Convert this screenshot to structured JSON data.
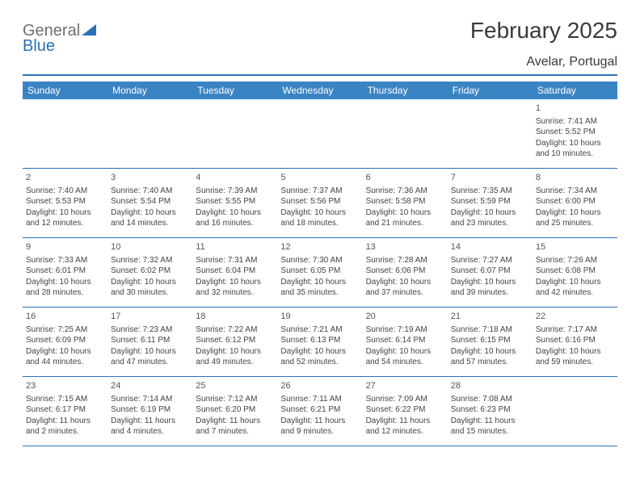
{
  "logo": {
    "textGray": "General",
    "textBlue": "Blue"
  },
  "title": "February 2025",
  "location": "Avelar, Portugal",
  "colors": {
    "headerBar": "#3b84c4",
    "rule": "#2a71b8",
    "logoGray": "#6f6f6f",
    "logoBlue": "#2a71b8",
    "text": "#333333",
    "background": "#ffffff"
  },
  "weekdays": [
    "Sunday",
    "Monday",
    "Tuesday",
    "Wednesday",
    "Thursday",
    "Friday",
    "Saturday"
  ],
  "startOffset": 6,
  "days": [
    {
      "n": 1,
      "sunrise": "7:41 AM",
      "sunset": "5:52 PM",
      "daylight": "10 hours and 10 minutes."
    },
    {
      "n": 2,
      "sunrise": "7:40 AM",
      "sunset": "5:53 PM",
      "daylight": "10 hours and 12 minutes."
    },
    {
      "n": 3,
      "sunrise": "7:40 AM",
      "sunset": "5:54 PM",
      "daylight": "10 hours and 14 minutes."
    },
    {
      "n": 4,
      "sunrise": "7:39 AM",
      "sunset": "5:55 PM",
      "daylight": "10 hours and 16 minutes."
    },
    {
      "n": 5,
      "sunrise": "7:37 AM",
      "sunset": "5:56 PM",
      "daylight": "10 hours and 18 minutes."
    },
    {
      "n": 6,
      "sunrise": "7:36 AM",
      "sunset": "5:58 PM",
      "daylight": "10 hours and 21 minutes."
    },
    {
      "n": 7,
      "sunrise": "7:35 AM",
      "sunset": "5:59 PM",
      "daylight": "10 hours and 23 minutes."
    },
    {
      "n": 8,
      "sunrise": "7:34 AM",
      "sunset": "6:00 PM",
      "daylight": "10 hours and 25 minutes."
    },
    {
      "n": 9,
      "sunrise": "7:33 AM",
      "sunset": "6:01 PM",
      "daylight": "10 hours and 28 minutes."
    },
    {
      "n": 10,
      "sunrise": "7:32 AM",
      "sunset": "6:02 PM",
      "daylight": "10 hours and 30 minutes."
    },
    {
      "n": 11,
      "sunrise": "7:31 AM",
      "sunset": "6:04 PM",
      "daylight": "10 hours and 32 minutes."
    },
    {
      "n": 12,
      "sunrise": "7:30 AM",
      "sunset": "6:05 PM",
      "daylight": "10 hours and 35 minutes."
    },
    {
      "n": 13,
      "sunrise": "7:28 AM",
      "sunset": "6:06 PM",
      "daylight": "10 hours and 37 minutes."
    },
    {
      "n": 14,
      "sunrise": "7:27 AM",
      "sunset": "6:07 PM",
      "daylight": "10 hours and 39 minutes."
    },
    {
      "n": 15,
      "sunrise": "7:26 AM",
      "sunset": "6:08 PM",
      "daylight": "10 hours and 42 minutes."
    },
    {
      "n": 16,
      "sunrise": "7:25 AM",
      "sunset": "6:09 PM",
      "daylight": "10 hours and 44 minutes."
    },
    {
      "n": 17,
      "sunrise": "7:23 AM",
      "sunset": "6:11 PM",
      "daylight": "10 hours and 47 minutes."
    },
    {
      "n": 18,
      "sunrise": "7:22 AM",
      "sunset": "6:12 PM",
      "daylight": "10 hours and 49 minutes."
    },
    {
      "n": 19,
      "sunrise": "7:21 AM",
      "sunset": "6:13 PM",
      "daylight": "10 hours and 52 minutes."
    },
    {
      "n": 20,
      "sunrise": "7:19 AM",
      "sunset": "6:14 PM",
      "daylight": "10 hours and 54 minutes."
    },
    {
      "n": 21,
      "sunrise": "7:18 AM",
      "sunset": "6:15 PM",
      "daylight": "10 hours and 57 minutes."
    },
    {
      "n": 22,
      "sunrise": "7:17 AM",
      "sunset": "6:16 PM",
      "daylight": "10 hours and 59 minutes."
    },
    {
      "n": 23,
      "sunrise": "7:15 AM",
      "sunset": "6:17 PM",
      "daylight": "11 hours and 2 minutes."
    },
    {
      "n": 24,
      "sunrise": "7:14 AM",
      "sunset": "6:19 PM",
      "daylight": "11 hours and 4 minutes."
    },
    {
      "n": 25,
      "sunrise": "7:12 AM",
      "sunset": "6:20 PM",
      "daylight": "11 hours and 7 minutes."
    },
    {
      "n": 26,
      "sunrise": "7:11 AM",
      "sunset": "6:21 PM",
      "daylight": "11 hours and 9 minutes."
    },
    {
      "n": 27,
      "sunrise": "7:09 AM",
      "sunset": "6:22 PM",
      "daylight": "11 hours and 12 minutes."
    },
    {
      "n": 28,
      "sunrise": "7:08 AM",
      "sunset": "6:23 PM",
      "daylight": "11 hours and 15 minutes."
    }
  ],
  "labels": {
    "sunrise": "Sunrise:",
    "sunset": "Sunset:",
    "daylight": "Daylight:"
  }
}
